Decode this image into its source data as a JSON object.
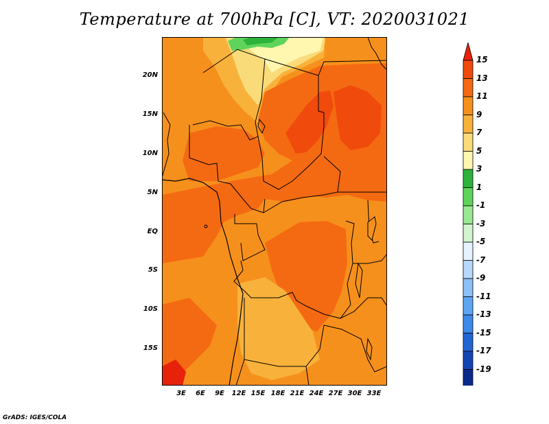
{
  "title": "Temperature at 700hPa [C], VT: 2020031021",
  "footer": "GrADS: IGES/COLA",
  "map": {
    "lat_labels": [
      "20N",
      "15N",
      "10N",
      "5N",
      "EQ",
      "5S",
      "10S",
      "15S"
    ],
    "lon_labels": [
      "3E",
      "6E",
      "9E",
      "12E",
      "15E",
      "18E",
      "21E",
      "24E",
      "27E",
      "30E",
      "33E"
    ]
  },
  "colorbar": {
    "labels": [
      "15",
      "13",
      "11",
      "9",
      "7",
      "5",
      "3",
      "1",
      "-1",
      "-3",
      "-5",
      "-7",
      "-9",
      "-11",
      "-13",
      "-15",
      "-17",
      "-19"
    ],
    "colors": [
      "#e8220a",
      "#f04a0c",
      "#f46a12",
      "#f6901c",
      "#f8b23c",
      "#fadb7a",
      "#fff6b0",
      "#2db33c",
      "#5fd45a",
      "#9ae893",
      "#d2f4cf",
      "#e6f2ff",
      "#b8d8fb",
      "#8cc0f7",
      "#5ea6f2",
      "#3c8ae9",
      "#2266d3",
      "#1346b4",
      "#0a2a8c",
      "#08105a"
    ]
  },
  "colors": {
    "bg_warm": "#f6901c",
    "band_11": "#f46a12",
    "band_13": "#f04a0c",
    "band_9": "#f8b23c",
    "band_7": "#fadb7a",
    "band_5": "#fff6b0",
    "band_1": "#2db33c",
    "band_m1": "#5fd45a"
  }
}
